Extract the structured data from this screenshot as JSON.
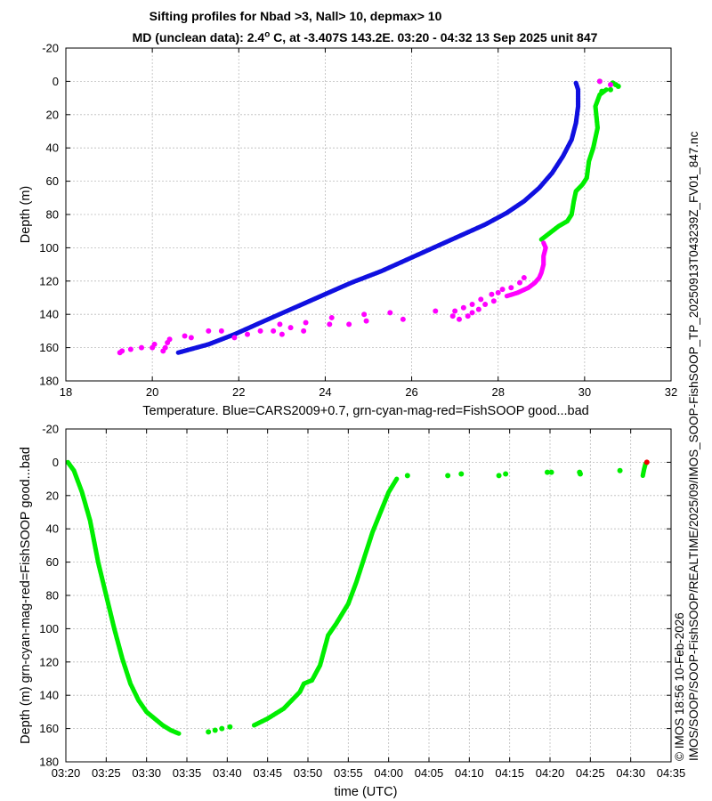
{
  "title_line1": "Sifting profiles for Nbad >3, Nall> 10, depmax> 10",
  "title_line2": "MD (unclean data): 2.4° C, at -3.407S 143.2E. 03:20 - 04:32 13 Sep 2025 unit 847",
  "right_label_top": "IMOS/SOOP/SOOP-FishSOOP/REALTIME/2025/09/IMOS_SOOP-FishSOOP_TP_20250913T043239Z_FV01_847.nc",
  "right_label_bottom": "© IMOS 18:56 10-Feb-2026",
  "colors": {
    "blue": "#1010e0",
    "green": "#00ee00",
    "magenta": "#ff00ff",
    "red": "#ee0000",
    "grid": "#bbbbbb"
  },
  "chart_data": [
    {
      "type": "scatter",
      "xlabel": "Temperature. Blue=CARS2009+0.7, grn-cyan-mag-red=FishSOOP good...bad",
      "ylabel": "Depth (m)",
      "xlim": [
        18,
        32
      ],
      "ylim": [
        -20,
        180
      ],
      "y_reversed": true,
      "grid": true,
      "xticks": [
        "18",
        "20",
        "22",
        "24",
        "26",
        "28",
        "30",
        "32"
      ],
      "yticks": [
        "-20",
        "0",
        "20",
        "40",
        "60",
        "80",
        "100",
        "120",
        "140",
        "160",
        "180"
      ],
      "series": [
        {
          "color": "blue",
          "style": "dense",
          "points": [
            [
              29.8,
              1
            ],
            [
              29.85,
              5
            ],
            [
              29.85,
              15
            ],
            [
              29.8,
              25
            ],
            [
              29.7,
              35
            ],
            [
              29.5,
              45
            ],
            [
              29.25,
              55
            ],
            [
              28.95,
              64
            ],
            [
              28.6,
              72
            ],
            [
              28.2,
              79
            ],
            [
              27.7,
              86
            ],
            [
              27.1,
              93
            ],
            [
              26.5,
              100
            ],
            [
              25.9,
              107
            ],
            [
              25.3,
              114
            ],
            [
              24.6,
              121
            ],
            [
              23.9,
              129
            ],
            [
              23.2,
              137
            ],
            [
              22.5,
              145
            ],
            [
              21.9,
              152
            ],
            [
              21.3,
              158
            ],
            [
              20.6,
              163
            ]
          ]
        },
        {
          "color": "green",
          "style": "dense",
          "points": [
            [
              30.5,
              5
            ],
            [
              30.35,
              8
            ],
            [
              30.25,
              15
            ],
            [
              30.3,
              28
            ],
            [
              30.2,
              40
            ],
            [
              30.1,
              48
            ],
            [
              30.05,
              58
            ],
            [
              29.95,
              62
            ],
            [
              29.8,
              66
            ],
            [
              29.75,
              72
            ],
            [
              29.7,
              80
            ],
            [
              29.6,
              84
            ],
            [
              29.4,
              87
            ],
            [
              29.2,
              91
            ],
            [
              29.0,
              95
            ]
          ]
        },
        {
          "color": "green",
          "style": "sparse",
          "points": [
            [
              30.35,
              0
            ],
            [
              30.65,
              1
            ],
            [
              30.72,
              2
            ],
            [
              30.78,
              3
            ],
            [
              30.6,
              5
            ],
            [
              30.4,
              6
            ]
          ]
        },
        {
          "color": "magenta",
          "style": "dense",
          "points": [
            [
              29.05,
              97
            ],
            [
              29.1,
              100
            ],
            [
              29.05,
              105
            ],
            [
              29.05,
              110
            ],
            [
              29.0,
              115
            ],
            [
              28.95,
              118
            ],
            [
              28.85,
              121
            ],
            [
              28.7,
              124
            ],
            [
              28.45,
              127
            ],
            [
              28.2,
              129
            ]
          ]
        },
        {
          "color": "magenta",
          "style": "sparse",
          "points": [
            [
              30.35,
              0
            ],
            [
              30.6,
              2
            ],
            [
              28.6,
              118
            ],
            [
              28.5,
              121
            ],
            [
              28.3,
              124
            ],
            [
              28.1,
              125
            ],
            [
              27.85,
              128
            ],
            [
              27.6,
              131
            ],
            [
              27.4,
              134
            ],
            [
              27.2,
              136
            ],
            [
              27.0,
              138
            ],
            [
              28.0,
              127
            ],
            [
              27.9,
              132
            ],
            [
              27.7,
              134
            ],
            [
              27.55,
              137
            ],
            [
              27.4,
              139
            ],
            [
              27.3,
              141
            ],
            [
              27.1,
              143
            ],
            [
              26.95,
              141
            ],
            [
              26.55,
              138
            ],
            [
              25.8,
              143
            ],
            [
              25.5,
              139
            ],
            [
              24.95,
              144
            ],
            [
              24.9,
              140
            ],
            [
              24.55,
              146
            ],
            [
              24.15,
              142
            ],
            [
              24.1,
              146
            ],
            [
              23.55,
              145
            ],
            [
              23.5,
              150
            ],
            [
              23.2,
              148
            ],
            [
              23.0,
              152
            ],
            [
              22.95,
              146
            ],
            [
              22.8,
              150
            ],
            [
              22.5,
              150
            ],
            [
              22.2,
              152
            ],
            [
              21.9,
              154
            ],
            [
              21.6,
              150
            ],
            [
              21.3,
              150
            ],
            [
              20.9,
              154
            ],
            [
              20.75,
              153
            ],
            [
              20.4,
              155
            ],
            [
              20.35,
              157
            ],
            [
              20.3,
              160
            ],
            [
              20.25,
              162
            ],
            [
              20.05,
              158
            ],
            [
              20.0,
              160
            ],
            [
              19.75,
              160
            ],
            [
              19.5,
              161
            ],
            [
              19.3,
              162
            ],
            [
              19.25,
              163
            ]
          ]
        }
      ]
    },
    {
      "type": "scatter",
      "xlabel": "time (UTC)",
      "ylabel": "Depth (m) grn-cyan-mag-red=FishSOOP good...bad",
      "xlim": [
        "03:20",
        "04:35"
      ],
      "ylim": [
        -20,
        180
      ],
      "y_reversed": true,
      "grid": true,
      "xticks": [
        "03:20",
        "03:25",
        "03:30",
        "03:35",
        "03:40",
        "03:45",
        "03:50",
        "03:55",
        "04:00",
        "04:05",
        "04:10",
        "04:15",
        "04:20",
        "04:25",
        "04:30",
        "04:35"
      ],
      "yticks": [
        "-20",
        "0",
        "20",
        "40",
        "60",
        "80",
        "100",
        "120",
        "140",
        "160",
        "180"
      ],
      "series": [
        {
          "color": "green",
          "style": "dense",
          "points": [
            [
              "03:20:15",
              0
            ],
            [
              "03:21:00",
              5
            ],
            [
              "03:22:00",
              18
            ],
            [
              "03:23:00",
              35
            ],
            [
              "03:24:00",
              60
            ],
            [
              "03:25:00",
              80
            ],
            [
              "03:26:00",
              100
            ],
            [
              "03:27:00",
              118
            ],
            [
              "03:28:00",
              133
            ],
            [
              "03:29:00",
              143
            ],
            [
              "03:30:00",
              150
            ],
            [
              "03:31:00",
              154
            ],
            [
              "03:32:00",
              158
            ],
            [
              "03:33:00",
              161
            ],
            [
              "03:34:00",
              163
            ]
          ]
        },
        {
          "color": "green",
          "style": "dense",
          "points": [
            [
              "03:43:20",
              158
            ],
            [
              "03:45:00",
              154
            ],
            [
              "03:47:00",
              148
            ],
            [
              "03:49:00",
              138
            ],
            [
              "03:49:30",
              133
            ],
            [
              "03:50:30",
              131
            ],
            [
              "03:51:30",
              122
            ],
            [
              "03:52:30",
              104
            ],
            [
              "03:53:30",
              97
            ],
            [
              "03:55:00",
              85
            ],
            [
              "03:56:00",
              72
            ],
            [
              "03:57:00",
              57
            ],
            [
              "03:58:00",
              42
            ],
            [
              "03:59:00",
              30
            ],
            [
              "04:00:00",
              18
            ],
            [
              "04:01:00",
              10
            ]
          ]
        },
        {
          "color": "green",
          "style": "dense",
          "points": [
            [
              "04:31:30",
              8
            ],
            [
              "04:31:40",
              4
            ],
            [
              "04:31:50",
              1
            ]
          ]
        },
        {
          "color": "green",
          "style": "sparse",
          "points": [
            [
              "03:37:40",
              162
            ],
            [
              "03:38:30",
              161
            ],
            [
              "03:39:20",
              160
            ],
            [
              "03:40:20",
              159
            ],
            [
              "04:02:20",
              8
            ],
            [
              "04:07:20",
              8
            ],
            [
              "04:09:00",
              7
            ],
            [
              "04:13:40",
              8
            ],
            [
              "04:14:30",
              7
            ],
            [
              "04:19:40",
              6
            ],
            [
              "04:20:10",
              6
            ],
            [
              "04:23:40",
              6
            ],
            [
              "04:23:45",
              7
            ],
            [
              "04:28:40",
              5
            ]
          ]
        },
        {
          "color": "red",
          "style": "sparse",
          "points": [
            [
              "04:32:00",
              0
            ]
          ]
        }
      ]
    }
  ]
}
